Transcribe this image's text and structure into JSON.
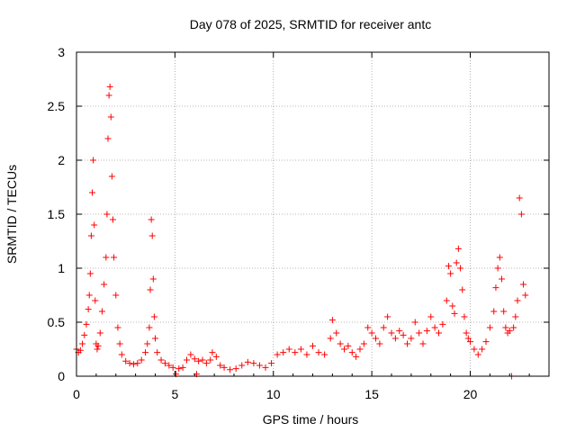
{
  "chart_data": {
    "type": "scatter",
    "title": "Day 078 of 2025, SRMTID for receiver antc",
    "xlabel": "GPS time / hours",
    "ylabel": "SRMTID / TECUs",
    "xlim": [
      0,
      24
    ],
    "ylim": [
      0,
      3
    ],
    "xticks": [
      0,
      5,
      10,
      15,
      20
    ],
    "xtick_labels": [
      "0",
      "5",
      "10",
      "15",
      "20"
    ],
    "yticks": [
      0,
      0.5,
      1,
      1.5,
      2,
      2.5,
      3
    ],
    "ytick_labels": [
      "0",
      "0.5",
      "1",
      "1.5",
      "2",
      "2.5",
      "3"
    ],
    "grid": true,
    "marker": "plus",
    "series": [
      {
        "name": "SRMTID",
        "color": "#ff0000",
        "points": [
          [
            0.0,
            0.25
          ],
          [
            0.1,
            0.22
          ],
          [
            0.2,
            0.24
          ],
          [
            0.3,
            0.3
          ],
          [
            0.4,
            0.38
          ],
          [
            0.5,
            0.48
          ],
          [
            0.6,
            0.62
          ],
          [
            0.65,
            0.75
          ],
          [
            0.7,
            0.95
          ],
          [
            0.75,
            1.3
          ],
          [
            0.8,
            1.7
          ],
          [
            0.85,
            2.0
          ],
          [
            0.9,
            1.4
          ],
          [
            0.95,
            0.7
          ],
          [
            1.0,
            0.3
          ],
          [
            1.05,
            0.25
          ],
          [
            1.1,
            0.28
          ],
          [
            1.2,
            0.4
          ],
          [
            1.3,
            0.6
          ],
          [
            1.4,
            0.85
          ],
          [
            1.5,
            1.1
          ],
          [
            1.55,
            1.5
          ],
          [
            1.6,
            2.2
          ],
          [
            1.65,
            2.6
          ],
          [
            1.7,
            2.68
          ],
          [
            1.75,
            2.4
          ],
          [
            1.8,
            1.85
          ],
          [
            1.85,
            1.45
          ],
          [
            1.9,
            1.1
          ],
          [
            2.0,
            0.75
          ],
          [
            2.1,
            0.45
          ],
          [
            2.2,
            0.3
          ],
          [
            2.3,
            0.2
          ],
          [
            2.5,
            0.14
          ],
          [
            2.7,
            0.12
          ],
          [
            2.9,
            0.11
          ],
          [
            3.1,
            0.12
          ],
          [
            3.3,
            0.15
          ],
          [
            3.5,
            0.22
          ],
          [
            3.6,
            0.3
          ],
          [
            3.7,
            0.45
          ],
          [
            3.75,
            0.8
          ],
          [
            3.8,
            1.45
          ],
          [
            3.85,
            1.3
          ],
          [
            3.9,
            0.9
          ],
          [
            3.95,
            0.55
          ],
          [
            4.0,
            0.35
          ],
          [
            4.1,
            0.22
          ],
          [
            4.3,
            0.15
          ],
          [
            4.5,
            0.12
          ],
          [
            4.7,
            0.1
          ],
          [
            4.9,
            0.08
          ],
          [
            5.05,
            0.02
          ],
          [
            5.2,
            0.07
          ],
          [
            5.4,
            0.08
          ],
          [
            5.6,
            0.15
          ],
          [
            5.8,
            0.2
          ],
          [
            6.0,
            0.16
          ],
          [
            6.1,
            0.02
          ],
          [
            6.2,
            0.14
          ],
          [
            6.4,
            0.15
          ],
          [
            6.6,
            0.12
          ],
          [
            6.8,
            0.15
          ],
          [
            6.9,
            0.22
          ],
          [
            7.1,
            0.18
          ],
          [
            7.3,
            0.1
          ],
          [
            7.5,
            0.08
          ],
          [
            7.8,
            0.06
          ],
          [
            8.1,
            0.07
          ],
          [
            8.4,
            0.1
          ],
          [
            8.7,
            0.13
          ],
          [
            9.0,
            0.12
          ],
          [
            9.3,
            0.1
          ],
          [
            9.6,
            0.08
          ],
          [
            9.9,
            0.12
          ],
          [
            10.2,
            0.2
          ],
          [
            10.5,
            0.22
          ],
          [
            10.8,
            0.25
          ],
          [
            11.1,
            0.22
          ],
          [
            11.4,
            0.25
          ],
          [
            11.7,
            0.2
          ],
          [
            12.0,
            0.28
          ],
          [
            12.3,
            0.22
          ],
          [
            12.6,
            0.2
          ],
          [
            12.9,
            0.35
          ],
          [
            13.0,
            0.52
          ],
          [
            13.2,
            0.4
          ],
          [
            13.4,
            0.3
          ],
          [
            13.6,
            0.25
          ],
          [
            13.8,
            0.28
          ],
          [
            14.0,
            0.22
          ],
          [
            14.2,
            0.18
          ],
          [
            14.4,
            0.25
          ],
          [
            14.6,
            0.3
          ],
          [
            14.8,
            0.45
          ],
          [
            15.0,
            0.4
          ],
          [
            15.2,
            0.35
          ],
          [
            15.4,
            0.3
          ],
          [
            15.6,
            0.45
          ],
          [
            15.8,
            0.55
          ],
          [
            16.0,
            0.4
          ],
          [
            16.2,
            0.35
          ],
          [
            16.4,
            0.42
          ],
          [
            16.6,
            0.38
          ],
          [
            16.8,
            0.3
          ],
          [
            17.0,
            0.35
          ],
          [
            17.2,
            0.5
          ],
          [
            17.4,
            0.4
          ],
          [
            17.6,
            0.3
          ],
          [
            17.8,
            0.42
          ],
          [
            18.0,
            0.55
          ],
          [
            18.2,
            0.45
          ],
          [
            18.4,
            0.4
          ],
          [
            18.6,
            0.48
          ],
          [
            18.8,
            0.7
          ],
          [
            18.9,
            1.02
          ],
          [
            19.0,
            0.95
          ],
          [
            19.1,
            0.65
          ],
          [
            19.2,
            0.58
          ],
          [
            19.3,
            1.05
          ],
          [
            19.4,
            1.18
          ],
          [
            19.5,
            1.0
          ],
          [
            19.6,
            0.8
          ],
          [
            19.7,
            0.55
          ],
          [
            19.8,
            0.4
          ],
          [
            19.9,
            0.35
          ],
          [
            20.0,
            0.32
          ],
          [
            20.2,
            0.25
          ],
          [
            20.4,
            0.2
          ],
          [
            20.6,
            0.25
          ],
          [
            20.8,
            0.32
          ],
          [
            21.0,
            0.45
          ],
          [
            21.2,
            0.6
          ],
          [
            21.3,
            0.82
          ],
          [
            21.4,
            1.0
          ],
          [
            21.5,
            1.1
          ],
          [
            21.6,
            0.9
          ],
          [
            21.7,
            0.6
          ],
          [
            21.8,
            0.45
          ],
          [
            21.9,
            0.4
          ],
          [
            22.0,
            0.42
          ],
          [
            22.1,
            0.0
          ],
          [
            22.2,
            0.45
          ],
          [
            22.3,
            0.55
          ],
          [
            22.4,
            0.7
          ],
          [
            22.5,
            1.65
          ],
          [
            22.6,
            1.5
          ],
          [
            22.7,
            0.85
          ],
          [
            22.8,
            0.75
          ]
        ]
      }
    ]
  }
}
